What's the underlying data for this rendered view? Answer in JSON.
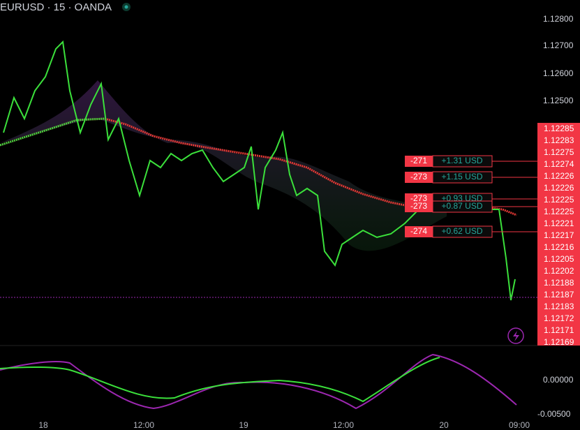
{
  "header": {
    "symbol": "EURUSD · 15 · OANDA"
  },
  "price_axis": [
    "1.12800",
    "1.12700",
    "1.12600",
    "1.12500"
  ],
  "price_tags": [
    "1.12285",
    "1.12283",
    "1.12275",
    "1.12274",
    "1.12226",
    "1.12226",
    "1.12225",
    "1.12225",
    "1.12221",
    "1.12217",
    "1.12216",
    "1.12205",
    "1.12202",
    "1.12188",
    "1.12187",
    "1.12183",
    "1.12172",
    "1.12171",
    "1.12169"
  ],
  "indicator_axis": [
    "0.00000",
    "-0.00500"
  ],
  "time_axis": [
    "18",
    "12:00",
    "19",
    "12:00",
    "20",
    "09:00"
  ],
  "orders": [
    {
      "qty": "-271",
      "pnl": "+1.31 USD"
    },
    {
      "qty": "-273",
      "pnl": "+1.15 USD"
    },
    {
      "qty": "-273",
      "pnl": "+0.93 USD"
    },
    {
      "qty": "-273",
      "pnl": "+0.87 USD"
    },
    {
      "qty": "-274",
      "pnl": "+0.62 USD"
    }
  ]
}
